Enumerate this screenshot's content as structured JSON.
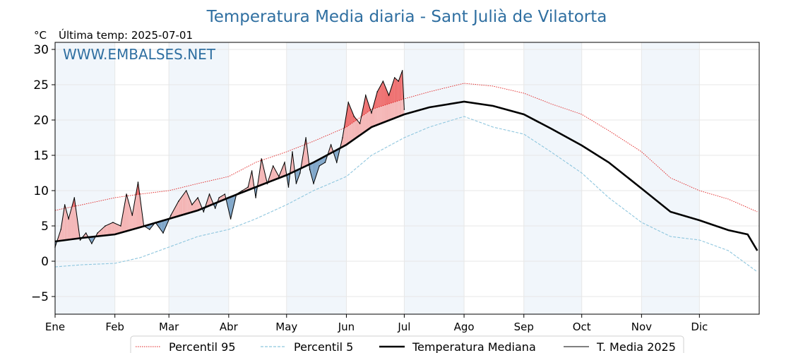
{
  "title": "Temperatura Media diaria - Sant Julià de Vilatorta",
  "unit_label": "°C",
  "last_temp_label": "Última temp: 2025-07-01",
  "watermark": "WWW.EMBALSES.NET",
  "chart_data": {
    "type": "line",
    "ylim": [
      -7.5,
      31
    ],
    "yticks": [
      -5,
      0,
      5,
      10,
      15,
      20,
      25,
      30
    ],
    "x_tick_labels": [
      "Ene",
      "Feb",
      "Mar",
      "Abr",
      "May",
      "Jun",
      "Jul",
      "Ago",
      "Sep",
      "Oct",
      "Nov",
      "Dic"
    ],
    "x_tick_day_of_year": [
      1,
      32,
      60,
      91,
      121,
      152,
      182,
      213,
      244,
      274,
      305,
      335
    ],
    "shaded_months": [
      "Ene",
      "Mar",
      "May",
      "Jul",
      "Sep",
      "Nov"
    ],
    "grid": true,
    "legend_position": "bottom",
    "series": [
      {
        "name": "Percentil 95",
        "style": "dotted",
        "color": "#e02020",
        "points": [
          [
            1,
            7.2
          ],
          [
            15,
            8.0
          ],
          [
            32,
            9.0
          ],
          [
            45,
            9.5
          ],
          [
            60,
            10.0
          ],
          [
            75,
            11.0
          ],
          [
            91,
            12.0
          ],
          [
            105,
            14.0
          ],
          [
            121,
            15.5
          ],
          [
            135,
            17.0
          ],
          [
            152,
            19.0
          ],
          [
            165,
            21.5
          ],
          [
            182,
            23.0
          ],
          [
            195,
            24.0
          ],
          [
            213,
            25.2
          ],
          [
            228,
            24.8
          ],
          [
            244,
            23.8
          ],
          [
            258,
            22.3
          ],
          [
            274,
            20.8
          ],
          [
            288,
            18.5
          ],
          [
            305,
            15.5
          ],
          [
            320,
            11.8
          ],
          [
            335,
            10.0
          ],
          [
            350,
            8.8
          ],
          [
            365,
            7.0
          ]
        ]
      },
      {
        "name": "Percentil 5",
        "style": "dashed",
        "color": "#8ec6de",
        "points": [
          [
            1,
            -0.8
          ],
          [
            15,
            -0.5
          ],
          [
            32,
            -0.3
          ],
          [
            45,
            0.5
          ],
          [
            60,
            2.0
          ],
          [
            75,
            3.5
          ],
          [
            91,
            4.5
          ],
          [
            105,
            6.0
          ],
          [
            121,
            8.0
          ],
          [
            135,
            10.0
          ],
          [
            152,
            12.0
          ],
          [
            165,
            15.0
          ],
          [
            182,
            17.5
          ],
          [
            195,
            19.0
          ],
          [
            213,
            20.5
          ],
          [
            228,
            19.0
          ],
          [
            244,
            18.0
          ],
          [
            258,
            15.5
          ],
          [
            274,
            12.5
          ],
          [
            288,
            9.0
          ],
          [
            305,
            5.5
          ],
          [
            320,
            3.5
          ],
          [
            335,
            3.0
          ],
          [
            350,
            1.5
          ],
          [
            365,
            -1.5
          ]
        ]
      },
      {
        "name": "Temperatura Mediana",
        "style": "solid-thick",
        "color": "#000000",
        "points": [
          [
            1,
            2.8
          ],
          [
            15,
            3.3
          ],
          [
            32,
            3.8
          ],
          [
            45,
            4.8
          ],
          [
            60,
            6.0
          ],
          [
            75,
            7.2
          ],
          [
            91,
            9.0
          ],
          [
            105,
            10.5
          ],
          [
            121,
            12.2
          ],
          [
            135,
            14.0
          ],
          [
            152,
            16.5
          ],
          [
            165,
            19.0
          ],
          [
            182,
            20.8
          ],
          [
            195,
            21.8
          ],
          [
            213,
            22.6
          ],
          [
            228,
            22.0
          ],
          [
            244,
            20.8
          ],
          [
            258,
            18.8
          ],
          [
            274,
            16.4
          ],
          [
            288,
            14.0
          ],
          [
            305,
            10.3
          ],
          [
            320,
            7.0
          ],
          [
            335,
            5.8
          ],
          [
            350,
            4.4
          ],
          [
            360,
            3.8
          ],
          [
            365,
            1.5
          ]
        ]
      },
      {
        "name": "T. Media 2025",
        "style": "solid-thin",
        "color": "#000000",
        "points": [
          [
            1,
            2.0
          ],
          [
            4,
            4.5
          ],
          [
            6,
            8.0
          ],
          [
            8,
            6.0
          ],
          [
            11,
            9.0
          ],
          [
            14,
            3.0
          ],
          [
            17,
            4.0
          ],
          [
            20,
            2.5
          ],
          [
            23,
            4.0
          ],
          [
            27,
            5.0
          ],
          [
            31,
            5.5
          ],
          [
            35,
            5.0
          ],
          [
            38,
            9.5
          ],
          [
            41,
            6.5
          ],
          [
            44,
            11.2
          ],
          [
            47,
            5.0
          ],
          [
            50,
            4.5
          ],
          [
            53,
            5.5
          ],
          [
            57,
            4.0
          ],
          [
            61,
            6.5
          ],
          [
            65,
            8.5
          ],
          [
            69,
            10.0
          ],
          [
            72,
            8.0
          ],
          [
            75,
            9.0
          ],
          [
            78,
            7.0
          ],
          [
            81,
            9.5
          ],
          [
            84,
            7.5
          ],
          [
            86,
            9.0
          ],
          [
            89,
            9.5
          ],
          [
            92,
            6.0
          ],
          [
            95,
            9.5
          ],
          [
            98,
            10.0
          ],
          [
            101,
            10.5
          ],
          [
            103,
            12.8
          ],
          [
            105,
            9.0
          ],
          [
            108,
            14.5
          ],
          [
            111,
            11.0
          ],
          [
            114,
            13.5
          ],
          [
            117,
            12.0
          ],
          [
            120,
            14.0
          ],
          [
            122,
            10.5
          ],
          [
            124,
            15.5
          ],
          [
            126,
            11.0
          ],
          [
            128,
            12.5
          ],
          [
            131,
            17.5
          ],
          [
            133,
            13.0
          ],
          [
            135,
            11.0
          ],
          [
            138,
            13.5
          ],
          [
            141,
            14.0
          ],
          [
            144,
            16.5
          ],
          [
            147,
            14.0
          ],
          [
            150,
            17.5
          ],
          [
            153,
            22.5
          ],
          [
            156,
            20.5
          ],
          [
            159,
            19.5
          ],
          [
            162,
            23.5
          ],
          [
            165,
            21.0
          ],
          [
            168,
            24.0
          ],
          [
            171,
            25.5
          ],
          [
            174,
            23.5
          ],
          [
            177,
            26.0
          ],
          [
            179,
            25.5
          ],
          [
            181,
            27.0
          ],
          [
            182,
            21.5
          ]
        ]
      }
    ]
  },
  "legend": {
    "items": [
      {
        "label": "Percentil 95"
      },
      {
        "label": "Percentil 5"
      },
      {
        "label": "Temperatura Mediana"
      },
      {
        "label": "T. Media 2025"
      }
    ]
  }
}
